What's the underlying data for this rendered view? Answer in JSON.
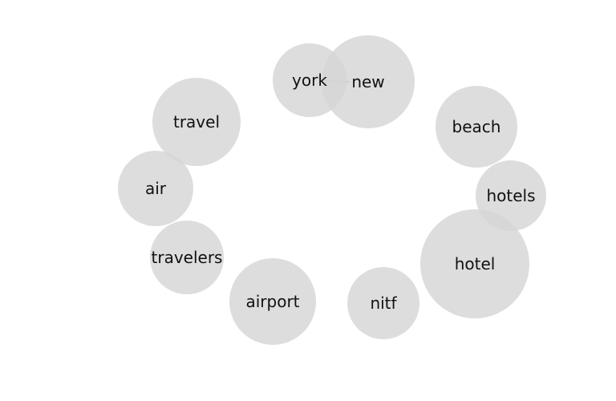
{
  "diagram": {
    "type": "word-cooccurrence-network",
    "node_color": "#d6d6d6",
    "edge_color": "#a8a8a8",
    "label_color": "#111111",
    "background_color": "#ffffff",
    "nodes": [
      {
        "id": "york",
        "label": "york"
      },
      {
        "id": "new",
        "label": "new"
      },
      {
        "id": "beach",
        "label": "beach"
      },
      {
        "id": "travel",
        "label": "travel"
      },
      {
        "id": "air",
        "label": "air"
      },
      {
        "id": "hotels",
        "label": "hotels"
      },
      {
        "id": "travelers",
        "label": "travelers"
      },
      {
        "id": "hotel",
        "label": "hotel"
      },
      {
        "id": "airport",
        "label": "airport"
      },
      {
        "id": "nitf",
        "label": "nitf"
      }
    ],
    "edges": [
      {
        "source": "york",
        "target": "new"
      }
    ]
  }
}
